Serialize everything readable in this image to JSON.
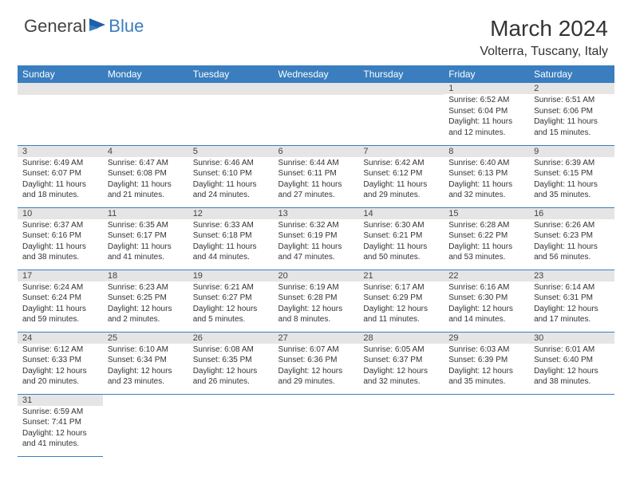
{
  "logo": {
    "part1": "General",
    "part2": "Blue"
  },
  "title": "March 2024",
  "location": "Volterra, Tuscany, Italy",
  "colors": {
    "header_bg": "#3a7ebf",
    "header_text": "#ffffff",
    "daynum_bg": "#e5e5e5",
    "row_divider": "#3a7ebf",
    "logo_blue": "#3a7ebf",
    "body_text": "#333333"
  },
  "weekdays": [
    "Sunday",
    "Monday",
    "Tuesday",
    "Wednesday",
    "Thursday",
    "Friday",
    "Saturday"
  ],
  "grid": {
    "rows": 6,
    "cols": 7,
    "first_weekday_index": 5,
    "days_in_month": 31
  },
  "days": {
    "1": {
      "sunrise": "6:52 AM",
      "sunset": "6:04 PM",
      "daylight": "11 hours and 12 minutes."
    },
    "2": {
      "sunrise": "6:51 AM",
      "sunset": "6:06 PM",
      "daylight": "11 hours and 15 minutes."
    },
    "3": {
      "sunrise": "6:49 AM",
      "sunset": "6:07 PM",
      "daylight": "11 hours and 18 minutes."
    },
    "4": {
      "sunrise": "6:47 AM",
      "sunset": "6:08 PM",
      "daylight": "11 hours and 21 minutes."
    },
    "5": {
      "sunrise": "6:46 AM",
      "sunset": "6:10 PM",
      "daylight": "11 hours and 24 minutes."
    },
    "6": {
      "sunrise": "6:44 AM",
      "sunset": "6:11 PM",
      "daylight": "11 hours and 27 minutes."
    },
    "7": {
      "sunrise": "6:42 AM",
      "sunset": "6:12 PM",
      "daylight": "11 hours and 29 minutes."
    },
    "8": {
      "sunrise": "6:40 AM",
      "sunset": "6:13 PM",
      "daylight": "11 hours and 32 minutes."
    },
    "9": {
      "sunrise": "6:39 AM",
      "sunset": "6:15 PM",
      "daylight": "11 hours and 35 minutes."
    },
    "10": {
      "sunrise": "6:37 AM",
      "sunset": "6:16 PM",
      "daylight": "11 hours and 38 minutes."
    },
    "11": {
      "sunrise": "6:35 AM",
      "sunset": "6:17 PM",
      "daylight": "11 hours and 41 minutes."
    },
    "12": {
      "sunrise": "6:33 AM",
      "sunset": "6:18 PM",
      "daylight": "11 hours and 44 minutes."
    },
    "13": {
      "sunrise": "6:32 AM",
      "sunset": "6:19 PM",
      "daylight": "11 hours and 47 minutes."
    },
    "14": {
      "sunrise": "6:30 AM",
      "sunset": "6:21 PM",
      "daylight": "11 hours and 50 minutes."
    },
    "15": {
      "sunrise": "6:28 AM",
      "sunset": "6:22 PM",
      "daylight": "11 hours and 53 minutes."
    },
    "16": {
      "sunrise": "6:26 AM",
      "sunset": "6:23 PM",
      "daylight": "11 hours and 56 minutes."
    },
    "17": {
      "sunrise": "6:24 AM",
      "sunset": "6:24 PM",
      "daylight": "11 hours and 59 minutes."
    },
    "18": {
      "sunrise": "6:23 AM",
      "sunset": "6:25 PM",
      "daylight": "12 hours and 2 minutes."
    },
    "19": {
      "sunrise": "6:21 AM",
      "sunset": "6:27 PM",
      "daylight": "12 hours and 5 minutes."
    },
    "20": {
      "sunrise": "6:19 AM",
      "sunset": "6:28 PM",
      "daylight": "12 hours and 8 minutes."
    },
    "21": {
      "sunrise": "6:17 AM",
      "sunset": "6:29 PM",
      "daylight": "12 hours and 11 minutes."
    },
    "22": {
      "sunrise": "6:16 AM",
      "sunset": "6:30 PM",
      "daylight": "12 hours and 14 minutes."
    },
    "23": {
      "sunrise": "6:14 AM",
      "sunset": "6:31 PM",
      "daylight": "12 hours and 17 minutes."
    },
    "24": {
      "sunrise": "6:12 AM",
      "sunset": "6:33 PM",
      "daylight": "12 hours and 20 minutes."
    },
    "25": {
      "sunrise": "6:10 AM",
      "sunset": "6:34 PM",
      "daylight": "12 hours and 23 minutes."
    },
    "26": {
      "sunrise": "6:08 AM",
      "sunset": "6:35 PM",
      "daylight": "12 hours and 26 minutes."
    },
    "27": {
      "sunrise": "6:07 AM",
      "sunset": "6:36 PM",
      "daylight": "12 hours and 29 minutes."
    },
    "28": {
      "sunrise": "6:05 AM",
      "sunset": "6:37 PM",
      "daylight": "12 hours and 32 minutes."
    },
    "29": {
      "sunrise": "6:03 AM",
      "sunset": "6:39 PM",
      "daylight": "12 hours and 35 minutes."
    },
    "30": {
      "sunrise": "6:01 AM",
      "sunset": "6:40 PM",
      "daylight": "12 hours and 38 minutes."
    },
    "31": {
      "sunrise": "6:59 AM",
      "sunset": "7:41 PM",
      "daylight": "12 hours and 41 minutes."
    }
  },
  "labels": {
    "sunrise": "Sunrise:",
    "sunset": "Sunset:",
    "daylight": "Daylight:"
  }
}
